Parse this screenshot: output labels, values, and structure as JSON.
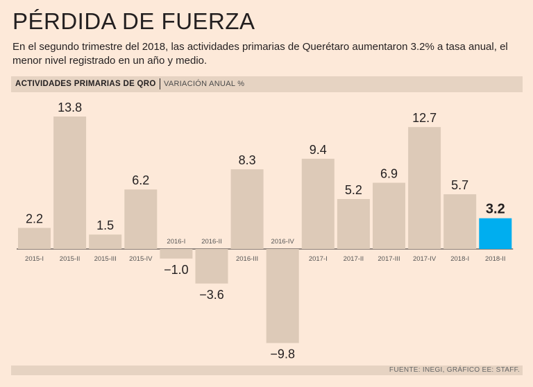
{
  "title": "PÉRDIDA DE FUERZA",
  "subtitle": "En el segundo trimestre del 2018, las actividades primarias de Querétaro aumentaron 3.2% a tasa anual, el menor nivel registrado en un año y medio.",
  "header": {
    "main": "ACTIVIDADES PRIMARIAS DE QRO",
    "sub": "VARIACIÓN ANUAL %"
  },
  "footer": "FUENTE: INEGI, GRÁFICO EE: STAFF.",
  "colors": {
    "bar": "#ddcab8",
    "highlight": "#00aeef",
    "background": "#fde9d9"
  },
  "chart_data": {
    "type": "bar",
    "title": "ACTIVIDADES PRIMARIAS DE QRO",
    "ylabel": "VARIACIÓN ANUAL %",
    "xlabel": "",
    "categories": [
      "2015-I",
      "2015-II",
      "2015-III",
      "2015-IV",
      "2016-I",
      "2016-II",
      "2016-III",
      "2016-IV",
      "2017-I",
      "2017-II",
      "2017-III",
      "2017-IV",
      "2018-I",
      "2018-II"
    ],
    "values": [
      2.2,
      13.8,
      1.5,
      6.2,
      -1.0,
      -3.6,
      8.3,
      -9.8,
      9.4,
      5.2,
      6.9,
      12.7,
      5.7,
      3.2
    ],
    "labels": [
      "2.2",
      "13.8",
      "1.5",
      "6.2",
      "−1.0",
      "−3.6",
      "8.3",
      "−9.8",
      "9.4",
      "5.2",
      "6.9",
      "12.7",
      "5.7",
      "3.2"
    ],
    "highlight_index": 13,
    "ylim": [
      -9.8,
      13.8
    ],
    "grid": false
  }
}
